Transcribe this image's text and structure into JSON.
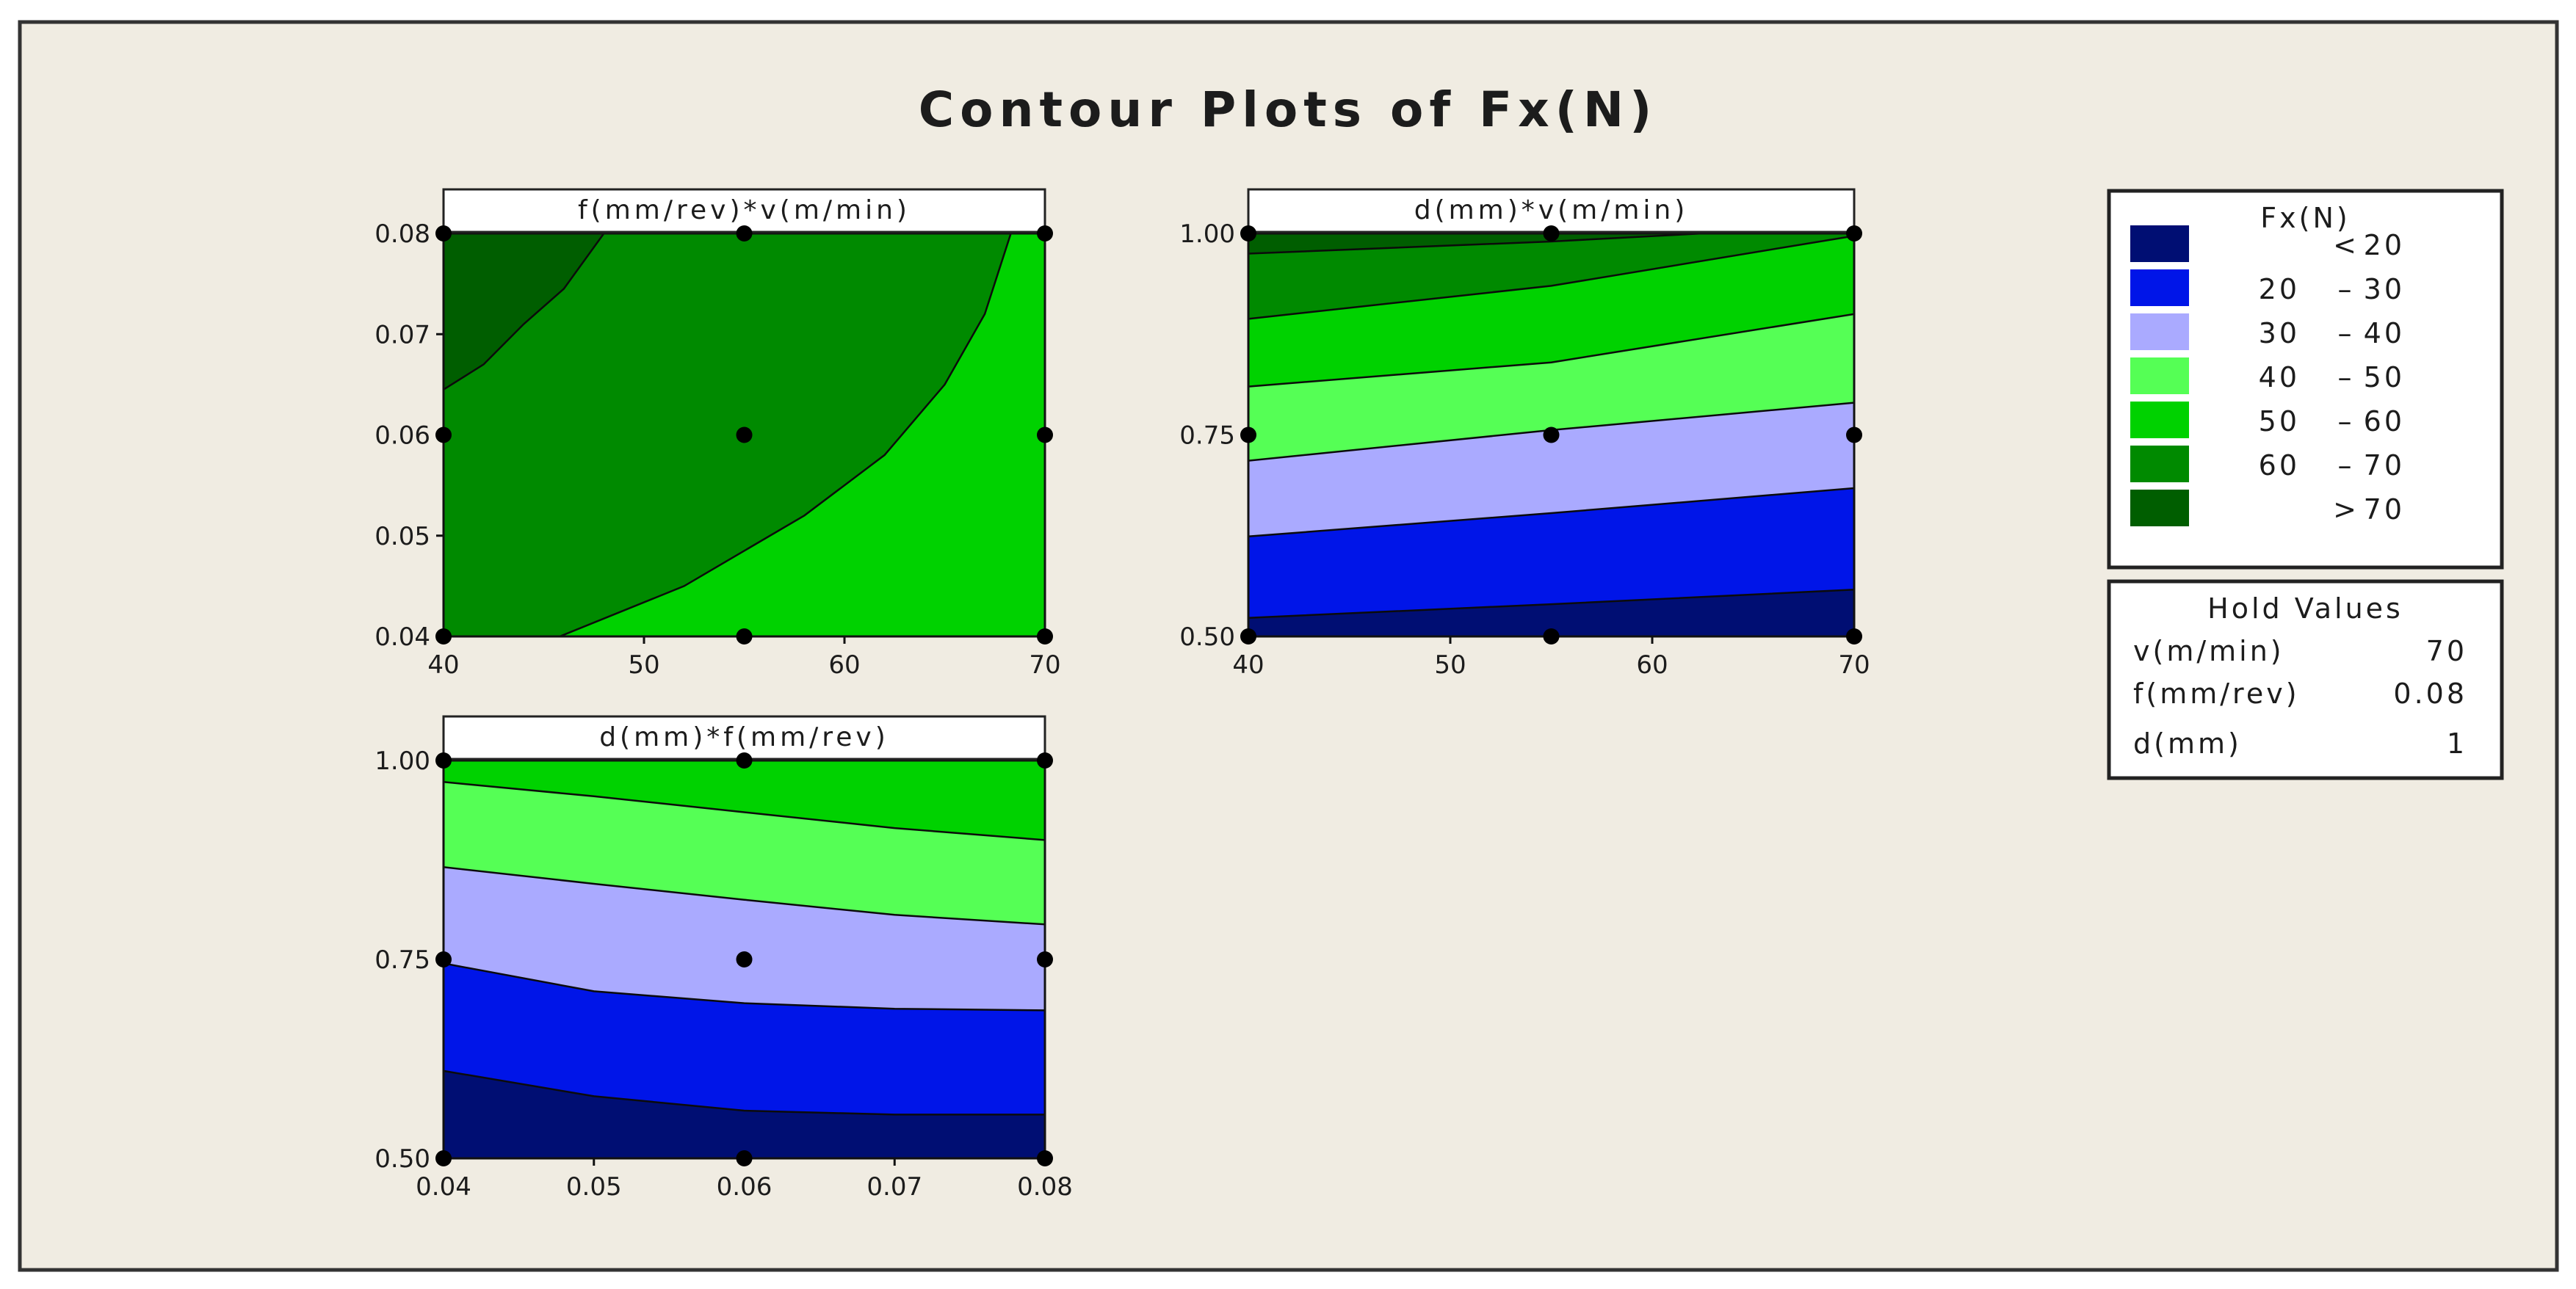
{
  "chart_data": {
    "type": "contour",
    "title": "Contour Plots of Fx(N)",
    "legend": {
      "title": "Fx(N)",
      "placement": "right",
      "levels": [
        {
          "low": "",
          "sep": "<",
          "high": "20",
          "color": "#000e73"
        },
        {
          "low": "20",
          "sep": "–",
          "high": "30",
          "color": "#0015e8"
        },
        {
          "low": "30",
          "sep": "–",
          "high": "40",
          "color": "#aaaaff"
        },
        {
          "low": "40",
          "sep": "–",
          "high": "50",
          "color": "#55ff55"
        },
        {
          "low": "50",
          "sep": "–",
          "high": "60",
          "color": "#00d200"
        },
        {
          "low": "60",
          "sep": "–",
          "high": "70",
          "color": "#008a00"
        },
        {
          "low": "",
          "sep": ">",
          "high": "70",
          "color": "#005e00"
        }
      ]
    },
    "hold_values": {
      "title": "Hold Values",
      "rows": [
        {
          "name": "v(m/min)",
          "value": "70"
        },
        {
          "name": "f(mm/rev)",
          "value": "0.08"
        },
        {
          "name": "d(mm)",
          "value": "1"
        }
      ]
    },
    "panels": [
      {
        "title": "f(mm/rev)*v(m/min)",
        "xlim": [
          40,
          70
        ],
        "ylim": [
          0.04,
          0.08
        ],
        "xticks": [
          "40",
          "50",
          "60",
          "70"
        ],
        "yticks": [
          "0.04",
          "0.05",
          "0.06",
          "0.07",
          "0.08"
        ],
        "design_points": [
          [
            40,
            0.04
          ],
          [
            55,
            0.04
          ],
          [
            70,
            0.04
          ],
          [
            40,
            0.06
          ],
          [
            55,
            0.06
          ],
          [
            70,
            0.06
          ],
          [
            40,
            0.08
          ],
          [
            55,
            0.08
          ],
          [
            70,
            0.08
          ]
        ],
        "background_band": 5,
        "contours": [
          {
            "band": 6,
            "boundary": [
              [
                40,
                0.0645
              ],
              [
                42,
                0.067
              ],
              [
                44,
                0.071
              ],
              [
                46,
                0.0745
              ],
              [
                48,
                0.08
              ]
            ]
          },
          {
            "band": 4,
            "boundary": [
              [
                45.8,
                0.04
              ],
              [
                52,
                0.045
              ],
              [
                58,
                0.052
              ],
              [
                62,
                0.058
              ],
              [
                65,
                0.065
              ],
              [
                67,
                0.072
              ],
              [
                68.3,
                0.08
              ]
            ]
          }
        ]
      },
      {
        "title": "d(mm)*v(m/min)",
        "xlim": [
          40,
          70
        ],
        "ylim": [
          0.5,
          1.0
        ],
        "xticks": [
          "40",
          "50",
          "60",
          "70"
        ],
        "yticks": [
          "0.50",
          "0.75",
          "1.00"
        ],
        "design_points": [
          [
            40,
            0.5
          ],
          [
            55,
            0.5
          ],
          [
            70,
            0.5
          ],
          [
            40,
            0.75
          ],
          [
            55,
            0.75
          ],
          [
            70,
            0.75
          ],
          [
            40,
            1.0
          ],
          [
            55,
            1.0
          ],
          [
            70,
            1.0
          ]
        ],
        "background_band": 0,
        "band_lines": [
          {
            "band": 1,
            "curve": [
              [
                40,
                0.523
              ],
              [
                55,
                0.54
              ],
              [
                70,
                0.558
              ]
            ]
          },
          {
            "band": 2,
            "curve": [
              [
                40,
                0.624
              ],
              [
                55,
                0.653
              ],
              [
                70,
                0.684
              ]
            ]
          },
          {
            "band": 3,
            "curve": [
              [
                40,
                0.718
              ],
              [
                55,
                0.756
              ],
              [
                70,
                0.79
              ]
            ]
          },
          {
            "band": 4,
            "curve": [
              [
                40,
                0.81
              ],
              [
                55,
                0.84
              ],
              [
                70,
                0.9
              ]
            ]
          },
          {
            "band": 5,
            "curve": [
              [
                40,
                0.894
              ],
              [
                55,
                0.935
              ],
              [
                70,
                0.997
              ]
            ]
          },
          {
            "band": 6,
            "curve": [
              [
                40,
                0.975
              ],
              [
                55,
                0.99
              ],
              [
                70,
                1.01
              ]
            ]
          }
        ]
      },
      {
        "title": "d(mm)*f(mm/rev)",
        "xlim": [
          0.04,
          0.08
        ],
        "ylim": [
          0.5,
          1.0
        ],
        "xticks": [
          "0.04",
          "0.05",
          "0.06",
          "0.07",
          "0.08"
        ],
        "yticks": [
          "0.50",
          "0.75",
          "1.00"
        ],
        "design_points": [
          [
            0.04,
            0.5
          ],
          [
            0.06,
            0.5
          ],
          [
            0.08,
            0.5
          ],
          [
            0.04,
            0.75
          ],
          [
            0.06,
            0.75
          ],
          [
            0.08,
            0.75
          ],
          [
            0.04,
            1.0
          ],
          [
            0.06,
            1.0
          ],
          [
            0.08,
            1.0
          ]
        ],
        "background_band": 0,
        "band_lines": [
          {
            "band": 1,
            "curve": [
              [
                0.04,
                0.61
              ],
              [
                0.05,
                0.578
              ],
              [
                0.06,
                0.56
              ],
              [
                0.07,
                0.555
              ],
              [
                0.08,
                0.555
              ]
            ]
          },
          {
            "band": 2,
            "curve": [
              [
                0.04,
                0.745
              ],
              [
                0.05,
                0.71
              ],
              [
                0.06,
                0.695
              ],
              [
                0.07,
                0.688
              ],
              [
                0.08,
                0.686
              ]
            ]
          },
          {
            "band": 3,
            "curve": [
              [
                0.04,
                0.866
              ],
              [
                0.05,
                0.845
              ],
              [
                0.06,
                0.825
              ],
              [
                0.07,
                0.806
              ],
              [
                0.08,
                0.794
              ]
            ]
          },
          {
            "band": 4,
            "curve": [
              [
                0.04,
                0.973
              ],
              [
                0.05,
                0.955
              ],
              [
                0.06,
                0.935
              ],
              [
                0.07,
                0.915
              ],
              [
                0.08,
                0.9
              ]
            ]
          },
          {
            "band": 5,
            "curve": [
              [
                0.04,
                1.02
              ],
              [
                0.05,
                1.01
              ],
              [
                0.06,
                1.01
              ],
              [
                0.07,
                1.005
              ],
              [
                0.08,
                1.0
              ]
            ]
          }
        ]
      }
    ]
  }
}
